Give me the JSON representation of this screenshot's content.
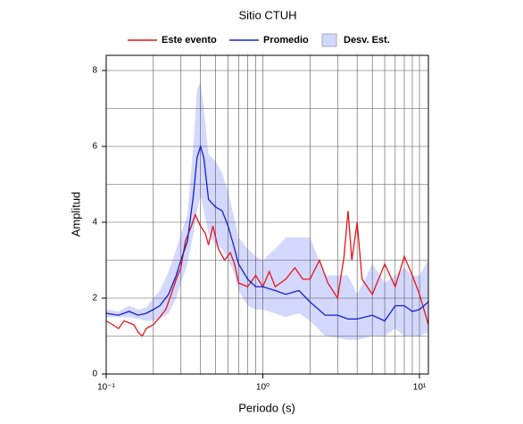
{
  "chart_data": {
    "type": "line",
    "title": "Sitio CTUH",
    "xlabel": "Periodo (s)",
    "ylabel": "Amplitud",
    "xscale": "log",
    "grid": true,
    "xlim": [
      0.1,
      11.4
    ],
    "ylim": [
      0,
      8.4
    ],
    "xticks": [
      {
        "value": 0.1,
        "label": "10⁻¹"
      },
      {
        "value": 1,
        "label": "10⁰"
      },
      {
        "value": 10,
        "label": "10¹"
      }
    ],
    "xminor": [
      0.2,
      0.3,
      0.4,
      0.5,
      0.6,
      0.7,
      0.8,
      0.9,
      2,
      3,
      4,
      5,
      6,
      7,
      8,
      9
    ],
    "yticks": [
      0,
      2,
      4,
      6,
      8
    ],
    "yminor": [
      1,
      3,
      5,
      7
    ],
    "series": [
      {
        "name": "Este evento",
        "color": "#e8141c",
        "x": [
          0.1,
          0.11,
          0.12,
          0.13,
          0.15,
          0.16,
          0.17,
          0.18,
          0.2,
          0.22,
          0.24,
          0.26,
          0.28,
          0.3,
          0.32,
          0.35,
          0.37,
          0.4,
          0.43,
          0.45,
          0.48,
          0.52,
          0.57,
          0.62,
          0.66,
          0.7,
          0.8,
          0.9,
          1.0,
          1.1,
          1.2,
          1.4,
          1.6,
          1.8,
          2.0,
          2.3,
          2.6,
          3.0,
          3.3,
          3.5,
          3.7,
          4.0,
          4.3,
          5.0,
          6.0,
          7.0,
          8.0,
          9.0,
          10,
          11.4
        ],
        "values": [
          1.4,
          1.3,
          1.2,
          1.4,
          1.3,
          1.1,
          1.0,
          1.2,
          1.3,
          1.5,
          1.7,
          2.1,
          2.5,
          2.8,
          3.5,
          3.9,
          4.2,
          3.9,
          3.7,
          3.4,
          3.9,
          3.3,
          3.0,
          3.2,
          2.9,
          2.4,
          2.3,
          2.6,
          2.3,
          2.7,
          2.3,
          2.5,
          2.8,
          2.5,
          2.5,
          3.0,
          2.4,
          2.0,
          3.1,
          4.3,
          3.0,
          4.0,
          2.5,
          2.1,
          2.9,
          2.3,
          3.1,
          2.6,
          2.1,
          1.3
        ]
      },
      {
        "name": "Promedio",
        "color": "#1020d0",
        "x": [
          0.1,
          0.12,
          0.14,
          0.16,
          0.18,
          0.2,
          0.22,
          0.25,
          0.28,
          0.3,
          0.33,
          0.36,
          0.38,
          0.4,
          0.42,
          0.45,
          0.5,
          0.55,
          0.6,
          0.65,
          0.7,
          0.8,
          0.9,
          1.0,
          1.2,
          1.4,
          1.7,
          2.0,
          2.5,
          3.0,
          3.5,
          4.0,
          5.0,
          6.0,
          7.0,
          8.0,
          9.0,
          10,
          11.4
        ],
        "values": [
          1.6,
          1.55,
          1.65,
          1.55,
          1.6,
          1.7,
          1.8,
          2.1,
          2.6,
          3.0,
          3.5,
          4.7,
          5.7,
          6.0,
          5.7,
          4.6,
          4.4,
          4.3,
          3.9,
          3.4,
          2.9,
          2.5,
          2.3,
          2.3,
          2.2,
          2.1,
          2.2,
          1.9,
          1.55,
          1.55,
          1.45,
          1.45,
          1.55,
          1.4,
          1.8,
          1.8,
          1.65,
          1.7,
          1.9
        ]
      },
      {
        "name": "Desv. Est.",
        "color": "#d4d8fc",
        "x": [
          0.1,
          0.12,
          0.14,
          0.16,
          0.18,
          0.2,
          0.22,
          0.25,
          0.28,
          0.3,
          0.33,
          0.36,
          0.38,
          0.4,
          0.42,
          0.45,
          0.5,
          0.55,
          0.6,
          0.65,
          0.7,
          0.8,
          0.9,
          1.0,
          1.2,
          1.4,
          1.7,
          2.0,
          2.5,
          3.0,
          3.5,
          4.0,
          5.0,
          6.0,
          7.0,
          8.0,
          9.0,
          10,
          11.4
        ],
        "lower": [
          1.5,
          1.5,
          1.5,
          1.45,
          1.4,
          1.4,
          1.45,
          1.6,
          2.0,
          2.4,
          2.9,
          3.7,
          4.3,
          4.7,
          4.3,
          3.7,
          3.4,
          3.3,
          3.0,
          2.7,
          2.2,
          1.8,
          1.7,
          1.7,
          1.6,
          1.5,
          1.6,
          1.4,
          1.0,
          0.95,
          0.9,
          0.9,
          1.0,
          1.0,
          1.2,
          1.0,
          1.0,
          1.0,
          1.1
        ],
        "upper": [
          1.7,
          1.65,
          1.8,
          1.7,
          1.75,
          2.0,
          2.2,
          2.7,
          3.3,
          3.7,
          4.2,
          6.0,
          7.5,
          7.7,
          7.0,
          5.8,
          5.6,
          5.3,
          4.8,
          4.2,
          3.6,
          3.3,
          3.1,
          3.0,
          3.3,
          3.6,
          3.6,
          3.6,
          2.6,
          2.6,
          2.6,
          2.1,
          2.9,
          2.4,
          2.6,
          2.8,
          2.6,
          2.6,
          3.0
        ]
      }
    ]
  }
}
